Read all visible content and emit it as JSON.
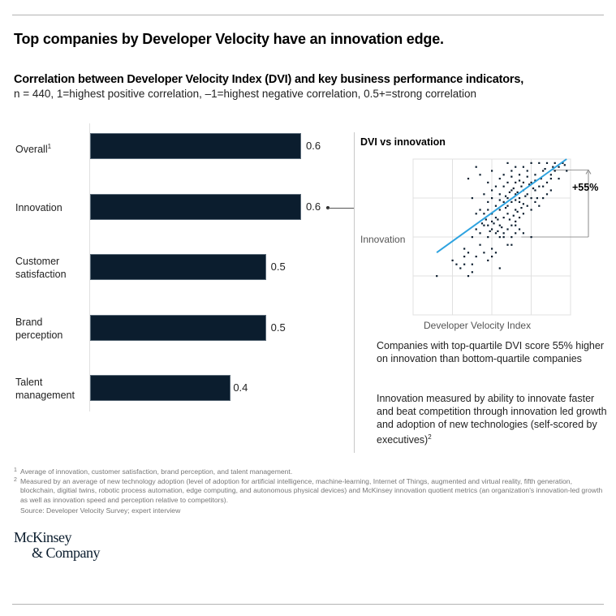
{
  "header": {
    "title": "Top companies by Developer Velocity have an innovation edge.",
    "subtitle": "Correlation between Developer Velocity Index (DVI) and key business performance indicators,",
    "subnote": "n = 440, 1=highest positive correlation, –1=highest negative correlation, 0.5+=strong correlation"
  },
  "colors": {
    "bar": "#0b1d2e",
    "trendline": "#2ea3e0",
    "points": "#0b1d2e",
    "grid": "#e0e0e0"
  },
  "chart_data": [
    {
      "type": "bar",
      "orientation": "horizontal",
      "title": "Correlation between Developer Velocity Index (DVI) and key business performance indicators",
      "categories": [
        "Overall",
        "Innovation",
        "Customer satisfaction",
        "Brand perception",
        "Talent management"
      ],
      "category_lines": [
        [
          "Overall"
        ],
        [
          "Innovation"
        ],
        [
          "Customer",
          "satisfaction"
        ],
        [
          "Brand",
          "perception"
        ],
        [
          "Talent",
          "management"
        ]
      ],
      "category_footnotes": [
        "1",
        "",
        "",
        "",
        ""
      ],
      "values": [
        0.6,
        0.6,
        0.5,
        0.5,
        0.4
      ],
      "value_labels": [
        "0.6",
        "0.6",
        "0.5",
        "0.5",
        "0.4"
      ],
      "xlim": [
        0,
        0.6
      ],
      "highlight": "Innovation"
    },
    {
      "type": "scatter",
      "title": "DVI vs innovation",
      "xlabel": "Developer Velocity Index",
      "ylabel": "Innovation",
      "xlim": [
        0,
        4
      ],
      "ylim": [
        0,
        4
      ],
      "grid": true,
      "trendline": {
        "x": [
          0.6,
          3.9
        ],
        "y": [
          1.6,
          4.0
        ]
      },
      "annotation": {
        "label": "+55%",
        "from_y": 2.0,
        "to_y": 3.72,
        "description": "top-quartile vs bottom-quartile"
      },
      "points": [
        [
          0.6,
          1.0
        ],
        [
          1.1,
          1.3
        ],
        [
          1.0,
          1.4
        ],
        [
          1.2,
          1.2
        ],
        [
          1.4,
          1.0
        ],
        [
          1.3,
          1.5
        ],
        [
          1.4,
          1.6
        ],
        [
          1.3,
          1.7
        ],
        [
          1.5,
          1.3
        ],
        [
          1.3,
          1.3
        ],
        [
          2.2,
          1.2
        ],
        [
          1.5,
          1.1
        ],
        [
          1.7,
          1.8
        ],
        [
          1.9,
          1.4
        ],
        [
          1.8,
          1.6
        ],
        [
          2.0,
          1.7
        ],
        [
          2.1,
          1.6
        ],
        [
          2.4,
          1.8
        ],
        [
          2.5,
          1.8
        ],
        [
          2.0,
          1.5
        ],
        [
          1.6,
          1.5
        ],
        [
          1.9,
          2.0
        ],
        [
          1.5,
          2.0
        ],
        [
          1.6,
          2.2
        ],
        [
          1.7,
          2.1
        ],
        [
          1.8,
          2.3
        ],
        [
          1.9,
          2.3
        ],
        [
          2.0,
          2.2
        ],
        [
          2.1,
          2.1
        ],
        [
          2.2,
          2.0
        ],
        [
          2.3,
          2.1
        ],
        [
          2.4,
          2.2
        ],
        [
          2.5,
          2.0
        ],
        [
          2.6,
          2.1
        ],
        [
          2.7,
          2.2
        ],
        [
          2.8,
          2.1
        ],
        [
          3.0,
          2.0
        ],
        [
          2.2,
          2.3
        ],
        [
          2.0,
          2.4
        ],
        [
          2.1,
          2.5
        ],
        [
          2.3,
          2.5
        ],
        [
          2.5,
          2.3
        ],
        [
          2.6,
          2.4
        ],
        [
          1.8,
          2.6
        ],
        [
          2.7,
          2.5
        ],
        [
          1.6,
          2.6
        ],
        [
          1.7,
          2.7
        ],
        [
          2.0,
          2.6
        ],
        [
          2.2,
          2.7
        ],
        [
          2.4,
          2.6
        ],
        [
          2.6,
          2.7
        ],
        [
          2.8,
          2.6
        ],
        [
          2.9,
          2.8
        ],
        [
          2.3,
          2.9
        ],
        [
          2.1,
          2.8
        ],
        [
          1.9,
          2.9
        ],
        [
          2.5,
          2.9
        ],
        [
          2.7,
          2.9
        ],
        [
          3.0,
          2.7
        ],
        [
          3.2,
          2.8
        ],
        [
          1.9,
          2.7
        ],
        [
          2.4,
          2.8
        ],
        [
          1.5,
          3.0
        ],
        [
          1.8,
          3.1
        ],
        [
          2.0,
          3.0
        ],
        [
          2.2,
          3.1
        ],
        [
          2.4,
          3.0
        ],
        [
          2.5,
          3.2
        ],
        [
          2.6,
          3.1
        ],
        [
          2.7,
          3.0
        ],
        [
          2.8,
          3.2
        ],
        [
          2.9,
          3.1
        ],
        [
          3.0,
          3.0
        ],
        [
          3.1,
          3.2
        ],
        [
          3.3,
          3.0
        ],
        [
          2.3,
          3.3
        ],
        [
          2.1,
          3.3
        ],
        [
          2.6,
          3.4
        ],
        [
          2.8,
          3.4
        ],
        [
          3.0,
          3.4
        ],
        [
          3.2,
          3.3
        ],
        [
          3.4,
          3.1
        ],
        [
          3.5,
          3.2
        ],
        [
          2.4,
          3.4
        ],
        [
          2.2,
          3.5
        ],
        [
          1.9,
          3.4
        ],
        [
          1.4,
          3.5
        ],
        [
          1.7,
          3.6
        ],
        [
          2.0,
          3.7
        ],
        [
          2.3,
          3.6
        ],
        [
          2.5,
          3.7
        ],
        [
          2.7,
          3.6
        ],
        [
          2.9,
          3.7
        ],
        [
          3.1,
          3.6
        ],
        [
          3.3,
          3.7
        ],
        [
          3.5,
          3.6
        ],
        [
          3.7,
          3.5
        ],
        [
          2.6,
          3.8
        ],
        [
          2.8,
          3.8
        ],
        [
          3.0,
          3.9
        ],
        [
          3.2,
          3.9
        ],
        [
          3.4,
          3.9
        ],
        [
          3.6,
          3.9
        ],
        [
          3.8,
          3.9
        ],
        [
          2.4,
          3.9
        ],
        [
          1.6,
          3.8
        ],
        [
          3.6,
          3.7
        ],
        [
          3.9,
          3.7
        ],
        [
          2.55,
          3.25
        ],
        [
          2.65,
          3.15
        ],
        [
          2.75,
          3.3
        ],
        [
          2.85,
          3.05
        ],
        [
          2.45,
          3.15
        ],
        [
          2.35,
          3.05
        ],
        [
          2.95,
          3.35
        ],
        [
          3.05,
          3.25
        ],
        [
          2.7,
          3.45
        ],
        [
          2.9,
          3.55
        ],
        [
          3.1,
          3.45
        ],
        [
          2.5,
          3.55
        ],
        [
          2.6,
          2.95
        ],
        [
          2.8,
          2.85
        ],
        [
          2.2,
          2.95
        ],
        [
          2.0,
          3.2
        ],
        [
          3.15,
          3.0
        ],
        [
          3.25,
          3.5
        ],
        [
          3.4,
          3.4
        ],
        [
          2.35,
          2.75
        ],
        [
          2.15,
          2.45
        ],
        [
          2.05,
          2.35
        ],
        [
          1.95,
          2.15
        ],
        [
          2.25,
          2.25
        ],
        [
          2.45,
          2.45
        ],
        [
          2.55,
          2.55
        ],
        [
          2.65,
          2.65
        ],
        [
          2.15,
          2.15
        ],
        [
          1.85,
          2.45
        ],
        [
          1.75,
          2.35
        ],
        [
          2.3,
          2.0
        ],
        [
          2.6,
          2.3
        ],
        [
          2.75,
          2.75
        ],
        [
          3.1,
          2.9
        ],
        [
          3.3,
          3.3
        ],
        [
          3.5,
          3.5
        ],
        [
          3.7,
          3.8
        ],
        [
          3.85,
          3.85
        ],
        [
          3.35,
          3.75
        ],
        [
          3.55,
          3.8
        ]
      ]
    }
  ],
  "scatter_caption": {
    "finding": "Companies with top-quartile DVI score 55% higher on innovation than bottom-quartile companies",
    "definition": "Innovation measured by ability to innovate faster and beat competition through innovation led growth and adoption of new technologies (self-scored by executives)",
    "definition_footnote": "2"
  },
  "footnotes": [
    {
      "mark": "1",
      "text": "Average of innovation, customer satisfaction, brand perception, and talent management."
    },
    {
      "mark": "2",
      "text": "Measured by an average of new technology adoption (level of adoption for artificial intelligence, machine-learning, Internet of Things, augmented and virtual reality, fifth generation, blockchain, digitial twins, robotic process automation, edge computing, and autonomous physical devices) and McKinsey innovation quotient metrics (an organization's innovation-led growth as well as innovation speed and perception relative to competitors)."
    }
  ],
  "source": "Source: Developer Velocity Survey; expert interview",
  "logo": {
    "line1": "McKinsey",
    "line2": "& Company"
  }
}
